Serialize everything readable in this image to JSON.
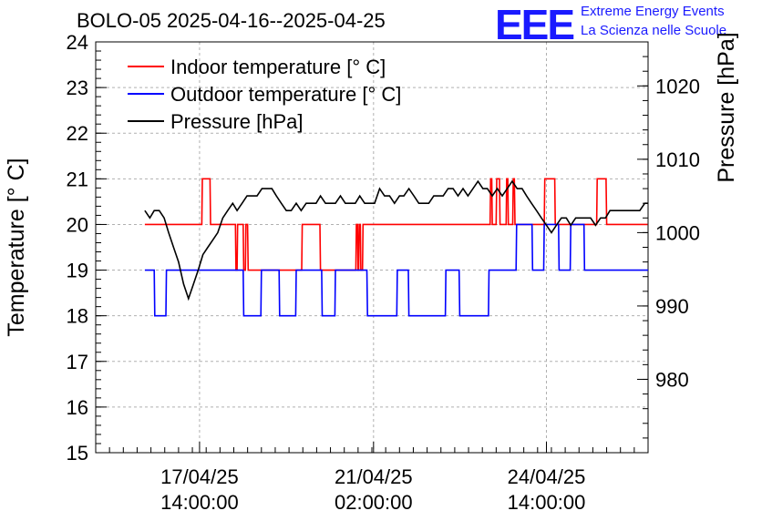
{
  "chart_data": {
    "type": "line",
    "title": "BOLO-05 2025-04-16--2025-04-25",
    "ylabel": "Temperature [° C]",
    "y2label": "Pressure [hPa]",
    "ylim": [
      15,
      24
    ],
    "y2lim": [
      970,
      1026
    ],
    "yticks": [
      "15",
      "16",
      "17",
      "18",
      "19",
      "20",
      "21",
      "22",
      "23",
      "24"
    ],
    "y2ticks": [
      "980",
      "990",
      "1000",
      "1010",
      "1020"
    ],
    "xlim": [
      0,
      100
    ],
    "xticks": [
      {
        "x": 18.8,
        "line1": "17/04/25",
        "line2": "14:00:00"
      },
      {
        "x": 50.3,
        "line1": "21/04/25",
        "line2": "02:00:00"
      },
      {
        "x": 81.6,
        "line1": "24/04/25",
        "line2": "14:00:00"
      }
    ],
    "grid": true,
    "legend_position": "top-left",
    "series": [
      {
        "name": "Indoor temperature [° C]",
        "color": "#ff0000",
        "axis": "left",
        "x": [
          8.9,
          19.2,
          19.3,
          20.7,
          20.8,
          25.3,
          25.4,
          25.6,
          25.7,
          26.7,
          26.8,
          27.1,
          27.2,
          27.5,
          27.6,
          37.3,
          37.4,
          40.6,
          40.7,
          47.1,
          47.2,
          47.4,
          47.5,
          47.6,
          47.7,
          47.9,
          48.0,
          48.3,
          48.4,
          71.4,
          71.5,
          71.7,
          71.8,
          72.5,
          72.6,
          73.1,
          73.2,
          74.3,
          74.4,
          74.6,
          74.7,
          75.5,
          75.6,
          75.8,
          75.9,
          81.2,
          81.3,
          83.1,
          83.2,
          90.7,
          90.8,
          92.4,
          92.5,
          99.9
        ],
        "y": [
          20,
          20,
          21,
          21,
          20,
          20,
          19,
          19,
          20,
          20,
          19,
          19,
          20,
          20,
          19,
          19,
          20,
          20,
          19,
          19,
          20,
          20,
          19,
          19,
          20,
          20,
          19,
          19,
          20,
          20,
          21,
          21,
          20,
          20,
          21,
          21,
          20,
          20,
          21,
          21,
          20,
          20,
          21,
          21,
          20,
          20,
          21,
          21,
          20,
          20,
          21,
          21,
          20,
          20
        ]
      },
      {
        "name": "Outdoor temperature [° C]",
        "color": "#0000ff",
        "axis": "left",
        "x": [
          8.9,
          10.6,
          10.7,
          12.7,
          12.8,
          26.7,
          26.8,
          29.9,
          30.0,
          33.2,
          33.3,
          36.2,
          36.3,
          40.9,
          41.0,
          43.3,
          43.4,
          49.1,
          49.2,
          54.5,
          54.6,
          56.6,
          56.7,
          63.3,
          63.4,
          65.8,
          65.9,
          71.1,
          71.2,
          76.1,
          76.2,
          79.0,
          79.1,
          81.1,
          81.2,
          83.8,
          83.9,
          85.9,
          86.0,
          88.4,
          88.5,
          92.2,
          92.3,
          100
        ],
        "y": [
          19,
          19,
          18,
          18,
          19,
          19,
          18,
          18,
          19,
          19,
          18,
          18,
          19,
          19,
          18,
          18,
          19,
          19,
          18,
          18,
          19,
          19,
          18,
          18,
          19,
          19,
          18,
          18,
          19,
          19,
          20,
          20,
          19,
          19,
          20,
          20,
          19,
          19,
          20,
          20,
          19,
          19,
          19,
          19
        ]
      },
      {
        "name": "Pressure [hPa]",
        "color": "#000000",
        "axis": "right",
        "x": [
          8.9,
          9.8,
          10.6,
          11.5,
          12.4,
          13.2,
          14.1,
          15.0,
          15.9,
          16.8,
          17.7,
          18.6,
          19.4,
          20.3,
          21.2,
          22.1,
          23.0,
          23.9,
          24.8,
          25.6,
          26.5,
          27.4,
          28.3,
          29.2,
          30.1,
          31.0,
          31.9,
          32.7,
          33.6,
          34.5,
          35.4,
          36.3,
          37.2,
          38.1,
          39.0,
          39.9,
          40.7,
          41.6,
          42.5,
          43.4,
          44.3,
          45.2,
          46.1,
          47.0,
          47.8,
          48.7,
          49.6,
          50.5,
          51.4,
          52.3,
          53.2,
          54.1,
          55.0,
          55.8,
          56.7,
          57.6,
          58.5,
          59.4,
          60.3,
          61.2,
          62.1,
          62.9,
          63.8,
          64.7,
          65.6,
          66.5,
          67.4,
          68.3,
          69.2,
          70.1,
          70.9,
          71.8,
          72.7,
          73.6,
          74.5,
          75.4,
          76.3,
          77.2,
          78.0,
          78.9,
          79.8,
          80.7,
          81.6,
          82.5,
          83.4,
          84.3,
          85.2,
          86.0,
          86.9,
          87.8,
          88.7,
          89.6,
          90.5,
          91.4,
          92.3,
          93.1,
          94.0,
          94.9,
          95.8,
          96.7,
          97.6,
          98.5,
          99.4,
          100.0
        ],
        "y": [
          1003,
          1002,
          1003,
          1003,
          1002,
          1000,
          998,
          996,
          993,
          991,
          993,
          995,
          997,
          998,
          999,
          1000,
          1002,
          1003,
          1004,
          1003,
          1004,
          1005,
          1005,
          1005,
          1006,
          1006,
          1006,
          1005,
          1004,
          1003,
          1003,
          1004,
          1003,
          1004,
          1004,
          1004,
          1005,
          1004,
          1004,
          1004,
          1005,
          1004,
          1004,
          1004,
          1005,
          1004,
          1004,
          1004,
          1006,
          1005,
          1005,
          1004,
          1005,
          1005,
          1006,
          1005,
          1004,
          1004,
          1004,
          1005,
          1005,
          1005,
          1006,
          1006,
          1005,
          1006,
          1005,
          1006,
          1007,
          1006,
          1006,
          1005,
          1006,
          1005,
          1006,
          1007,
          1006,
          1006,
          1005,
          1004,
          1003,
          1002,
          1001,
          1000,
          1001,
          1002,
          1002,
          1001,
          1002,
          1002,
          1002,
          1002,
          1001,
          1002,
          1002,
          1003,
          1003,
          1003,
          1003,
          1003,
          1003,
          1003,
          1004,
          1004
        ]
      }
    ]
  },
  "logo": {
    "text": "EEE",
    "line1": "Extreme Energy Events",
    "line2": "La Scienza nelle Scuole",
    "color": "#1a1aff"
  }
}
